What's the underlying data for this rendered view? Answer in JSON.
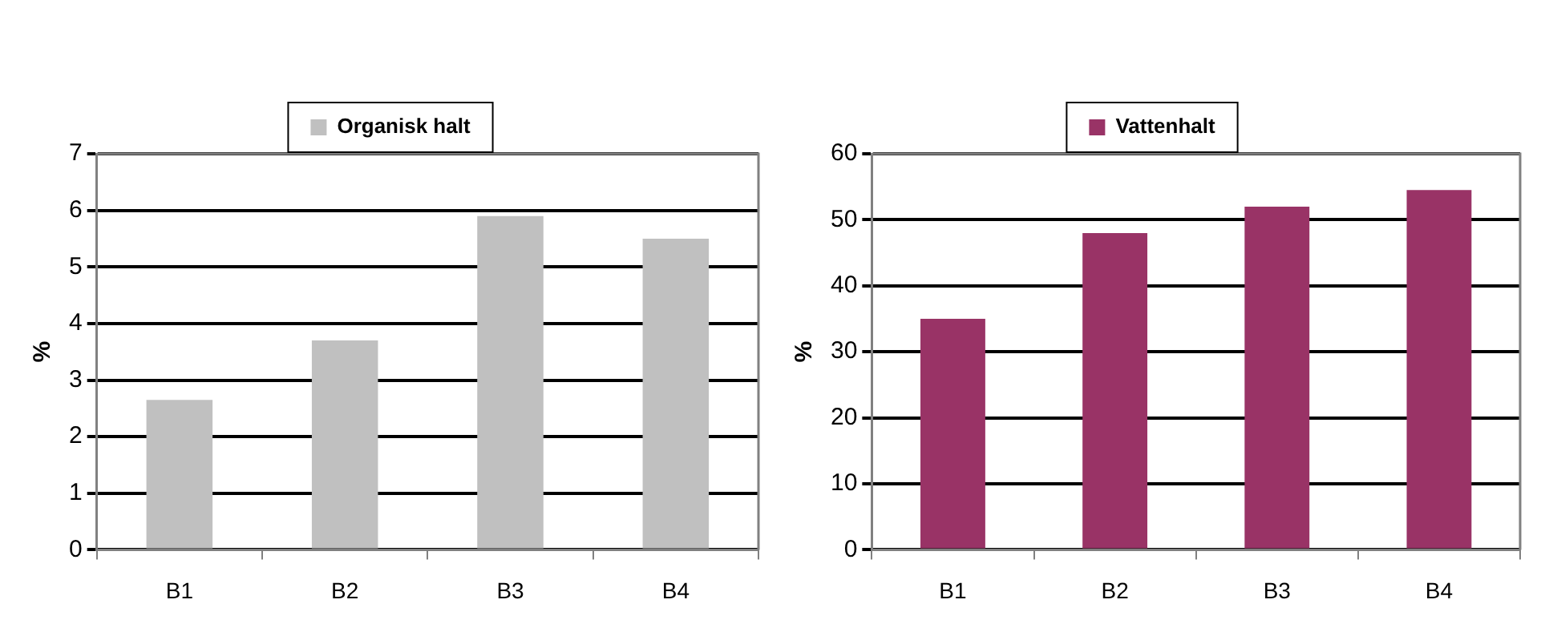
{
  "chart_data": [
    {
      "type": "bar",
      "categories": [
        "B1",
        "B2",
        "B3",
        "B4"
      ],
      "series": [
        {
          "name": "Organisk halt",
          "color": "#c0c0c0",
          "values": [
            2.65,
            3.7,
            5.9,
            5.5
          ]
        }
      ],
      "ylabel": "%",
      "ylim": [
        0,
        7
      ],
      "yticks": [
        0,
        1,
        2,
        3,
        4,
        5,
        6,
        7
      ],
      "grid": "y",
      "legend": "top"
    },
    {
      "type": "bar",
      "categories": [
        "B1",
        "B2",
        "B3",
        "B4"
      ],
      "series": [
        {
          "name": "Vattenhalt",
          "color": "#993366",
          "values": [
            35,
            48,
            52,
            54.5
          ]
        }
      ],
      "ylabel": "%",
      "ylim": [
        0,
        60
      ],
      "yticks": [
        0,
        10,
        20,
        30,
        40,
        50,
        60
      ],
      "grid": "y",
      "legend": "top"
    }
  ]
}
